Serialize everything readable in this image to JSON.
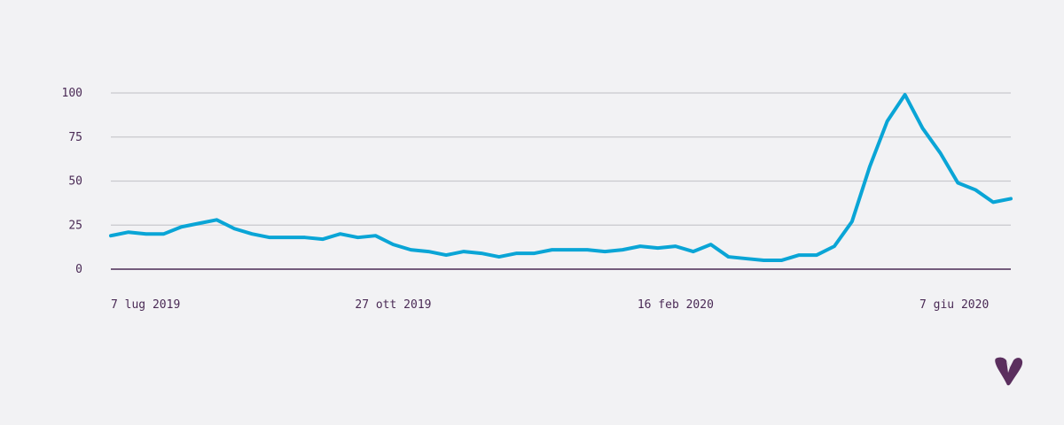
{
  "chart_data": {
    "type": "line",
    "title": "",
    "xlabel": "",
    "ylabel": "",
    "x_start": "2019-07-07",
    "x_step_days": 7,
    "x_tick_labels": [
      "7 lug 2019",
      "27 ott 2019",
      "16 feb 2020",
      "7 giu 2020"
    ],
    "x_tick_indices": [
      0,
      16,
      32,
      48
    ],
    "y_ticks": [
      0,
      25,
      50,
      75,
      100
    ],
    "ylim": [
      0,
      100
    ],
    "grid": true,
    "legend": "none",
    "series": [
      {
        "color": "#0aa5d6",
        "values": [
          19,
          21,
          20,
          20,
          24,
          26,
          28,
          23,
          20,
          18,
          18,
          18,
          17,
          20,
          18,
          19,
          14,
          11,
          10,
          8,
          10,
          9,
          7,
          9,
          9,
          11,
          11,
          11,
          10,
          11,
          13,
          12,
          13,
          10,
          14,
          7,
          6,
          5,
          5,
          8,
          8,
          13,
          27,
          58,
          84,
          99,
          80,
          66,
          49,
          45,
          38,
          40
        ]
      }
    ]
  },
  "colors": {
    "background": "#f2f2f4",
    "axis": "#4a2a55",
    "grid": "#c9c9cd",
    "logo": "#5b2f5e"
  },
  "logo": {
    "icon": "heart-v-logo"
  }
}
